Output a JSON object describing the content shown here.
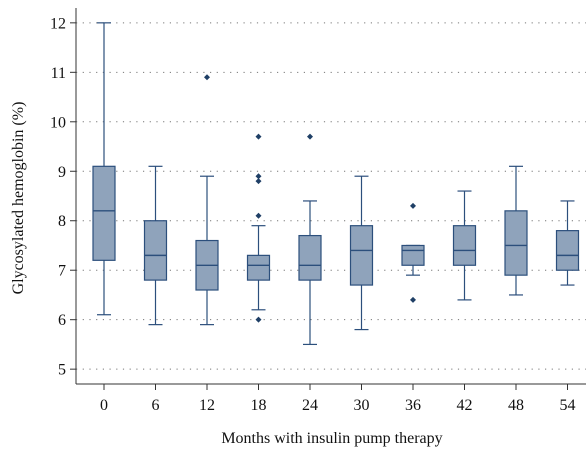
{
  "chart_data": {
    "type": "box",
    "title": "",
    "xlabel": "Months with insulin pump therapy",
    "ylabel": "Glycosylated hemoglobin (%)",
    "categories": [
      "0",
      "6",
      "12",
      "18",
      "24",
      "30",
      "36",
      "42",
      "48",
      "54"
    ],
    "ylim": [
      4.7,
      12.3
    ],
    "yticks": [
      5,
      6,
      7,
      8,
      9,
      10,
      11,
      12
    ],
    "grid": "horizontal dotted",
    "legend": "none",
    "colors": {
      "box_fill": "#8fa3bb",
      "box_stroke": "#2c4f7c",
      "outlier": "#1f3f66",
      "axis": "#333333",
      "grid": "#777777"
    },
    "boxes": [
      {
        "category": "0",
        "whisker_low": 6.1,
        "q1": 7.2,
        "median": 8.2,
        "q3": 9.1,
        "whisker_high": 12.0,
        "outliers": []
      },
      {
        "category": "6",
        "whisker_low": 5.9,
        "q1": 6.8,
        "median": 7.3,
        "q3": 8.0,
        "whisker_high": 9.1,
        "outliers": []
      },
      {
        "category": "12",
        "whisker_low": 5.9,
        "q1": 6.6,
        "median": 7.1,
        "q3": 7.6,
        "whisker_high": 8.9,
        "outliers": [
          10.9
        ]
      },
      {
        "category": "18",
        "whisker_low": 6.2,
        "q1": 6.8,
        "median": 7.1,
        "q3": 7.3,
        "whisker_high": 7.9,
        "outliers": [
          9.7,
          8.9,
          8.8,
          8.1,
          6.0
        ]
      },
      {
        "category": "24",
        "whisker_low": 5.5,
        "q1": 6.8,
        "median": 7.1,
        "q3": 7.7,
        "whisker_high": 8.4,
        "outliers": [
          9.7
        ]
      },
      {
        "category": "30",
        "whisker_low": 5.8,
        "q1": 6.7,
        "median": 7.4,
        "q3": 7.9,
        "whisker_high": 8.9,
        "outliers": []
      },
      {
        "category": "36",
        "whisker_low": 6.9,
        "q1": 7.1,
        "median": 7.4,
        "q3": 7.5,
        "whisker_high": 7.5,
        "outliers": [
          8.3,
          6.4
        ]
      },
      {
        "category": "42",
        "whisker_low": 6.4,
        "q1": 7.1,
        "median": 7.4,
        "q3": 7.9,
        "whisker_high": 8.6,
        "outliers": []
      },
      {
        "category": "48",
        "whisker_low": 6.5,
        "q1": 6.9,
        "median": 7.5,
        "q3": 8.2,
        "whisker_high": 9.1,
        "outliers": []
      },
      {
        "category": "54",
        "whisker_low": 6.7,
        "q1": 7.0,
        "median": 7.3,
        "q3": 7.8,
        "whisker_high": 8.4,
        "outliers": []
      }
    ]
  }
}
